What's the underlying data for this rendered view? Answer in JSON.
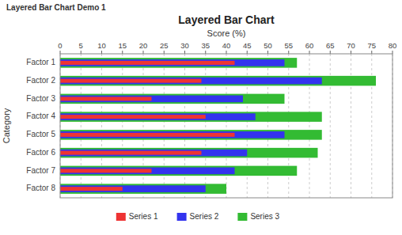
{
  "chart_data": {
    "type": "bar",
    "orientation": "horizontal",
    "title": "Layered Bar Chart",
    "annotations": [
      "Layered Bar Chart Demo 1"
    ],
    "x_label": "Score (%)",
    "y_label": "Category",
    "categories": [
      "Factor 1",
      "Factor 2",
      "Factor 3",
      "Factor 4",
      "Factor 5",
      "Factor 6",
      "Factor 7",
      "Factor 8"
    ],
    "series": [
      {
        "name": "Series 1",
        "color": "#EE3333",
        "values": [
          42,
          34,
          22,
          35,
          42,
          34,
          22,
          15
        ]
      },
      {
        "name": "Series 2",
        "color": "#3333EE",
        "values": [
          54,
          63,
          44,
          47,
          54,
          45,
          42,
          35
        ]
      },
      {
        "name": "Series 3",
        "color": "#33BB33",
        "values": [
          57,
          76,
          54,
          63,
          63,
          62,
          57,
          40
        ]
      }
    ],
    "xlim": [
      0,
      80
    ],
    "xticks": [
      0,
      5,
      10,
      15,
      20,
      25,
      30,
      35,
      40,
      45,
      50,
      55,
      60,
      65,
      70,
      75,
      80
    ],
    "grid": true,
    "legend": "bottom"
  }
}
